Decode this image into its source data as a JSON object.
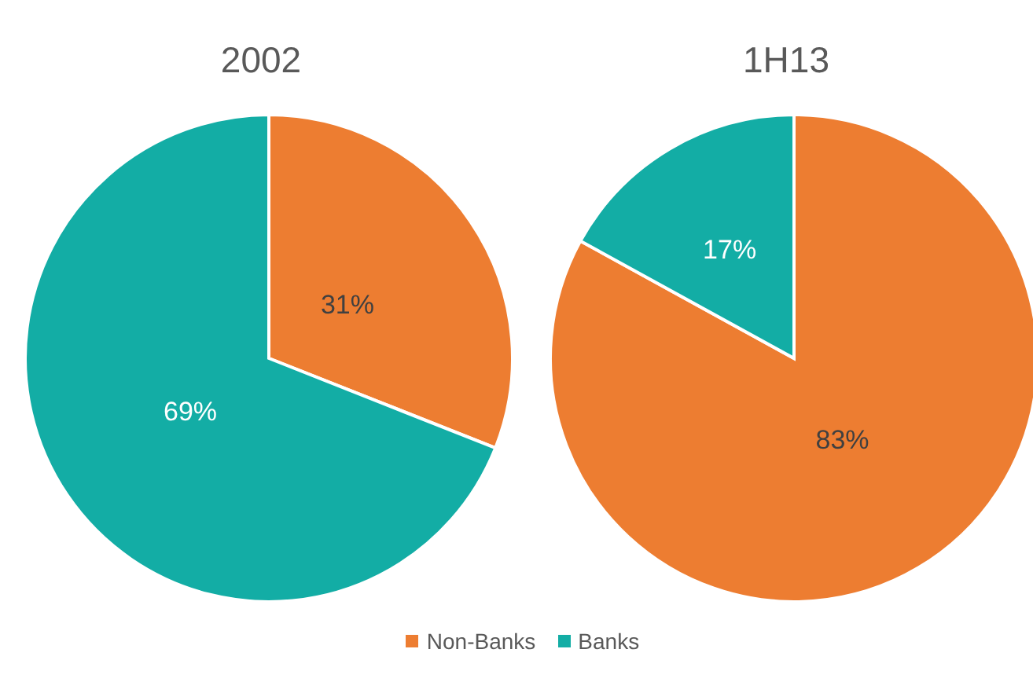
{
  "chart_data": [
    {
      "type": "pie",
      "title": "2002",
      "categories": [
        "Non-Banks",
        "Banks"
      ],
      "values": [
        31,
        69
      ],
      "colors": [
        "#ed7d31",
        "#13ada5"
      ],
      "value_labels": [
        "31%",
        "69%"
      ],
      "legend": "bottom"
    },
    {
      "type": "pie",
      "title": "1H13",
      "categories": [
        null,
        null
      ],
      "values": [
        83,
        17
      ],
      "colors": [
        "#ed7d31",
        "#13ada5"
      ],
      "value_labels": [
        "83%",
        "17%"
      ]
    }
  ]
}
